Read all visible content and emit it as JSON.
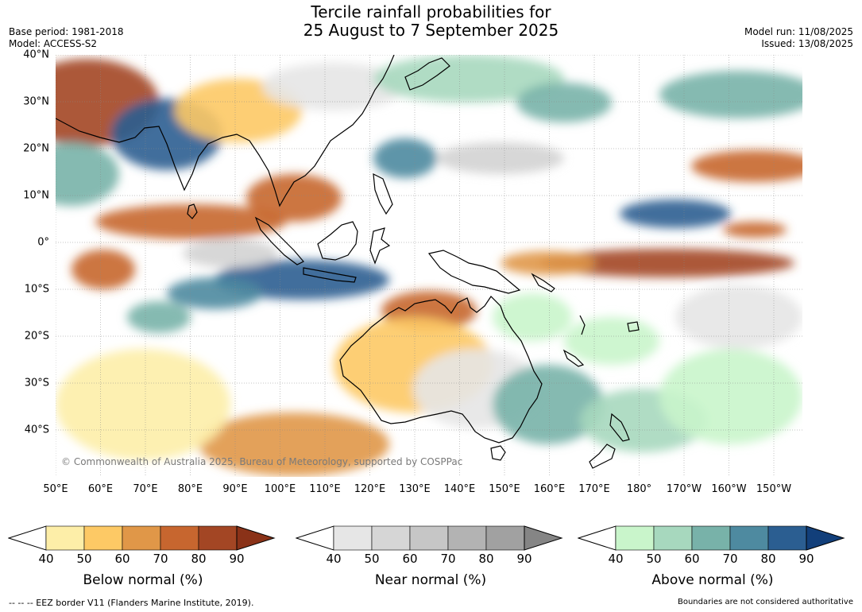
{
  "title": {
    "line1": "Tercile rainfall probabilities for",
    "line2": "25 August to 7 September 2025"
  },
  "meta": {
    "base_period": "Base period: 1981-2018",
    "model": "Model: ACCESS-S2",
    "model_run": "Model run: 11/08/2025",
    "issued": "Issued: 13/08/2025"
  },
  "map": {
    "lat_labels": [
      "40°N",
      "30°N",
      "20°N",
      "10°N",
      "0°",
      "10°S",
      "20°S",
      "30°S",
      "40°S"
    ],
    "lon_labels": [
      "50°E",
      "60°E",
      "70°E",
      "80°E",
      "90°E",
      "100°E",
      "110°E",
      "120°E",
      "130°E",
      "140°E",
      "150°E",
      "160°E",
      "170°E",
      "180°",
      "170°W",
      "160°W",
      "150°W"
    ],
    "copyright": "© Commonwealth of Australia 2025, Bureau of Meteorology, supported by COSPPac",
    "colors": {
      "below": [
        "#fdeea8",
        "#fdc965",
        "#e09748",
        "#c7662f",
        "#a34624"
      ],
      "near": [
        "#e6e6e6",
        "#d3d3d3",
        "#c4c4c4",
        "#afafaf"
      ],
      "above": [
        "#c9f5cb",
        "#a7d8be",
        "#78b2a9",
        "#4e8aa0",
        "#2b5e91"
      ],
      "land_outline": "#000000",
      "grid": "#888888"
    }
  },
  "legends": [
    {
      "title": "Below normal (%)",
      "ticks": [
        "40",
        "50",
        "60",
        "70",
        "80",
        "90"
      ],
      "colors": [
        "#ffffff",
        "#fdeea8",
        "#fdc965",
        "#e09748",
        "#c7662f",
        "#a34624",
        "#8a3218"
      ]
    },
    {
      "title": "Near normal (%)",
      "ticks": [
        "40",
        "50",
        "60",
        "70",
        "80",
        "90"
      ],
      "colors": [
        "#ffffff",
        "#e6e6e6",
        "#d6d6d6",
        "#c6c6c6",
        "#b3b3b3",
        "#a1a1a1",
        "#858585"
      ]
    },
    {
      "title": "Above normal (%)",
      "ticks": [
        "40",
        "50",
        "60",
        "70",
        "80",
        "90"
      ],
      "colors": [
        "#ffffff",
        "#c9f5cb",
        "#a7d8be",
        "#78b2a9",
        "#4e8aa0",
        "#2b5e91",
        "#123f7a"
      ]
    }
  ],
  "footer": {
    "eez_note": "--  --  -- EEZ border V11 (Flanders Marine Institute, 2019).",
    "disclaimer": "Boundaries are not considered authoritative"
  }
}
